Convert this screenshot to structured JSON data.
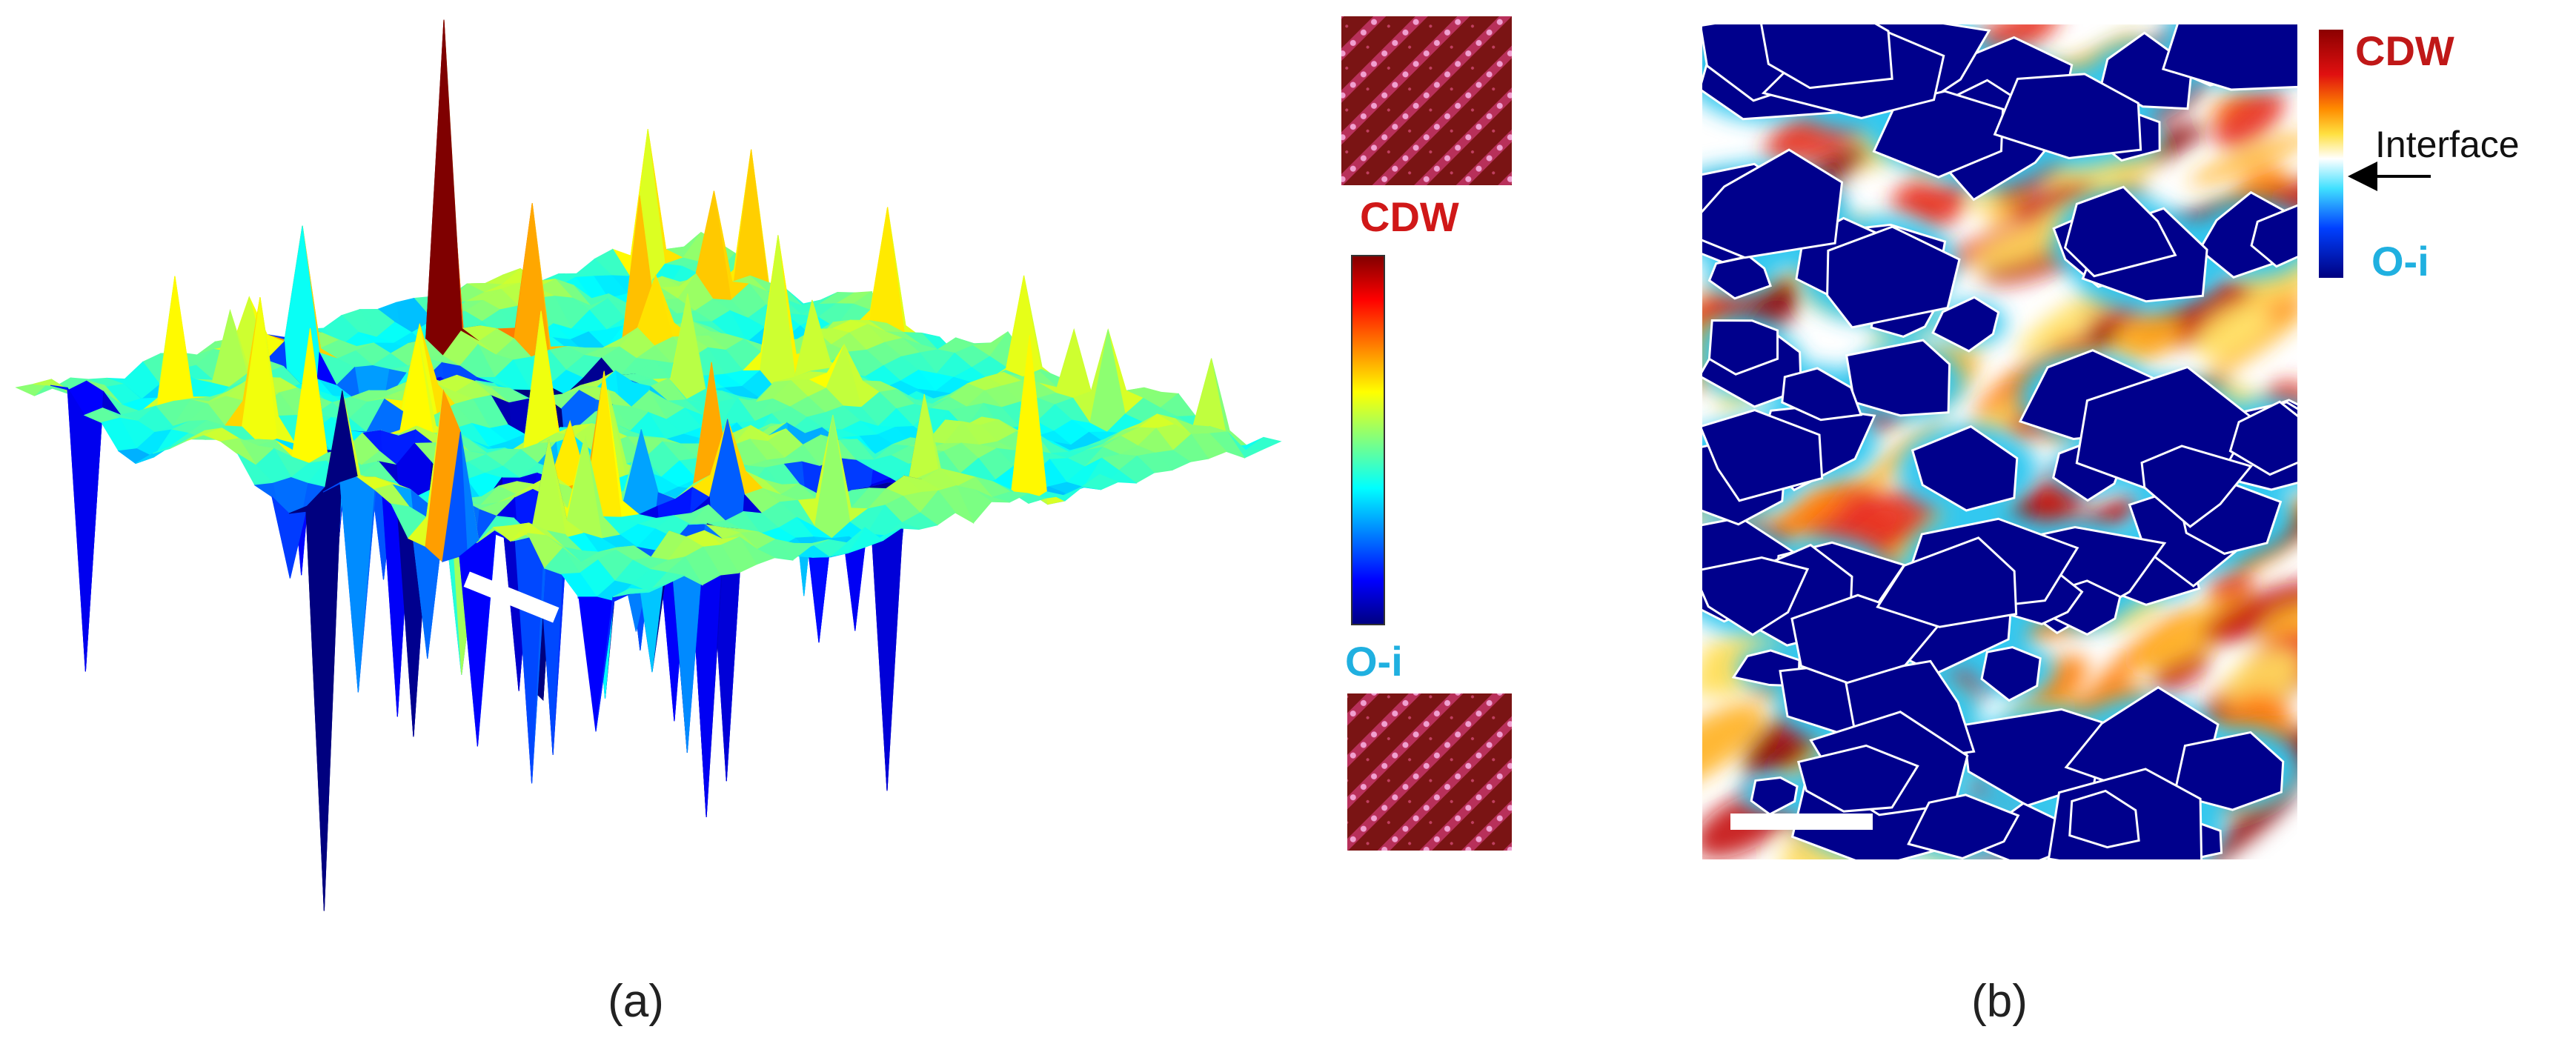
{
  "panel_a": {
    "colorbar_top": "CDW",
    "colorbar_bottom": "O-i",
    "caption": "(a)"
  },
  "panel_b": {
    "colorbar_top": "CDW",
    "colorbar_label": "Interface",
    "colorbar_bottom": "O-i",
    "caption": "(b)"
  }
}
